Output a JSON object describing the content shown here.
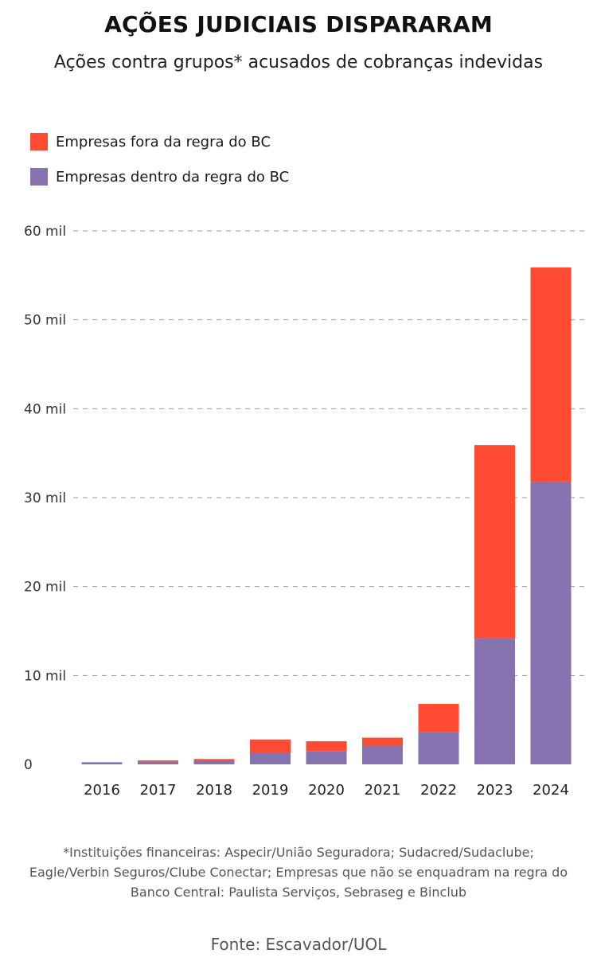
{
  "title": "AÇÕES JUDICIAIS DISPARARAM",
  "subtitle": "Ações contra grupos* acusados de cobranças indevidas",
  "footnote": "*Instituições financeiras: Aspecir/União Seguradora; Sudacred/Sudaclube; Eagle/Verbin Seguros/Clube Conectar; Empresas que não se enquadram na regra do Banco Central: Paulista Serviços, Sebraseg e Binclub",
  "source": "Fonte: Escavador/UOL",
  "colors": {
    "fora": "#FF4B31",
    "dentro": "#8672AE",
    "grid": "#9a9a9a"
  },
  "chart_data": {
    "type": "bar",
    "stacked": true,
    "categories": [
      "2016",
      "2017",
      "2018",
      "2019",
      "2020",
      "2021",
      "2022",
      "2023",
      "2024"
    ],
    "series": [
      {
        "name": "Empresas dentro da regra do BC",
        "color": "#8672AE",
        "values": [
          200,
          300,
          400,
          1300,
          1500,
          2100,
          3600,
          14200,
          31800
        ]
      },
      {
        "name": "Empresas fora da regra do BC",
        "color": "#FF4B31",
        "values": [
          50,
          150,
          200,
          1500,
          1100,
          900,
          3200,
          21700,
          24100
        ]
      }
    ],
    "legend": {
      "position": "top-left",
      "entries": [
        "Empresas fora da regra do BC",
        "Empresas dentro da regra do BC"
      ]
    },
    "yticks": [
      0,
      10000,
      20000,
      30000,
      40000,
      50000,
      60000
    ],
    "ytick_labels": [
      "0",
      "10 mil",
      "20 mil",
      "30 mil",
      "40 mil",
      "50 mil",
      "60 mil"
    ],
    "ylim": [
      0,
      60000
    ],
    "grid": "horizontal dashed",
    "xlabel": "",
    "ylabel": ""
  }
}
